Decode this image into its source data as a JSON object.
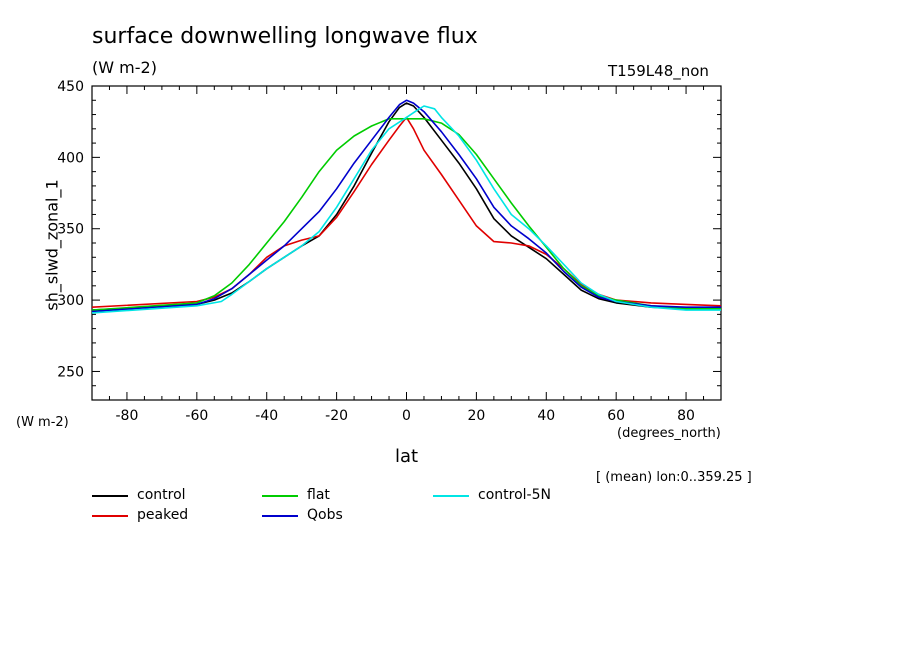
{
  "header": {
    "title": "surface downwelling longwave flux",
    "subtitle": "(W m-2)",
    "run_id": "T159L48_non"
  },
  "footer": {
    "mean_note": "[ (mean) lon:0..359.25 ]"
  },
  "chart_data": {
    "type": "line",
    "title": "surface downwelling longwave flux",
    "xlabel": "lat",
    "xlabel_unit": "(degrees_north)",
    "ylabel": "sh_slwd_zonal_1",
    "ylabel_unit": "(W m-2)",
    "xlim": [
      -90,
      90
    ],
    "ylim": [
      230,
      450
    ],
    "xticks": [
      -80,
      -60,
      -40,
      -20,
      0,
      20,
      40,
      60,
      80
    ],
    "xtick_labels": [
      "-80",
      "-60",
      "-40",
      "-20",
      "0",
      "20",
      "40",
      "60",
      "80"
    ],
    "yticks": [
      250,
      300,
      350,
      400,
      450
    ],
    "ytick_labels": [
      "250",
      "300",
      "350",
      "400",
      "450"
    ],
    "grid": false,
    "legend_position": "below",
    "series": [
      {
        "name": "control",
        "color": "#000000",
        "x": [
          -90,
          -60,
          -55,
          -50,
          -45,
          -40,
          -35,
          -30,
          -25,
          -20,
          -15,
          -10,
          -5,
          -2,
          0,
          2,
          5,
          10,
          15,
          20,
          25,
          30,
          35,
          40,
          45,
          50,
          55,
          60,
          70,
          80,
          90
        ],
        "y": [
          293,
          297,
          300,
          305,
          313,
          322,
          330,
          338,
          345,
          360,
          380,
          403,
          425,
          435,
          438,
          436,
          428,
          412,
          396,
          378,
          357,
          345,
          337,
          329,
          318,
          307,
          301,
          298,
          295,
          294,
          294
        ]
      },
      {
        "name": "peaked",
        "color": "#e00000",
        "x": [
          -90,
          -60,
          -55,
          -50,
          -45,
          -40,
          -35,
          -30,
          -25,
          -20,
          -15,
          -10,
          -5,
          -2,
          0,
          2,
          5,
          10,
          15,
          20,
          25,
          30,
          35,
          40,
          45,
          50,
          55,
          60,
          70,
          80,
          90
        ],
        "y": [
          295,
          299,
          302,
          308,
          318,
          330,
          338,
          342,
          345,
          358,
          376,
          395,
          412,
          422,
          428,
          420,
          405,
          388,
          370,
          352,
          341,
          340,
          338,
          332,
          322,
          311,
          304,
          300,
          298,
          297,
          296
        ]
      },
      {
        "name": "flat",
        "color": "#00cc00",
        "x": [
          -90,
          -60,
          -55,
          -50,
          -45,
          -40,
          -35,
          -30,
          -25,
          -20,
          -15,
          -10,
          -5,
          0,
          5,
          10,
          15,
          20,
          25,
          30,
          35,
          40,
          45,
          50,
          55,
          60,
          70,
          80,
          90
        ],
        "y": [
          293,
          298,
          303,
          312,
          325,
          340,
          355,
          372,
          390,
          405,
          415,
          422,
          427,
          427,
          427,
          424,
          416,
          402,
          385,
          368,
          352,
          337,
          322,
          310,
          303,
          300,
          296,
          294,
          294
        ]
      },
      {
        "name": "Qobs",
        "color": "#0000cc",
        "x": [
          -90,
          -60,
          -55,
          -50,
          -45,
          -40,
          -35,
          -30,
          -25,
          -20,
          -15,
          -10,
          -5,
          -2,
          0,
          2,
          5,
          10,
          15,
          20,
          25,
          30,
          35,
          40,
          45,
          50,
          55,
          60,
          70,
          80,
          90
        ],
        "y": [
          292,
          297,
          301,
          308,
          318,
          328,
          338,
          350,
          362,
          378,
          396,
          412,
          428,
          437,
          440,
          438,
          432,
          418,
          402,
          385,
          365,
          352,
          343,
          333,
          320,
          309,
          302,
          299,
          296,
          295,
          295
        ]
      },
      {
        "name": "control-5N",
        "color": "#00e5e5",
        "x": [
          -90,
          -60,
          -53,
          -50,
          -45,
          -40,
          -35,
          -30,
          -25,
          -20,
          -15,
          -10,
          -5,
          0,
          3,
          5,
          8,
          10,
          15,
          20,
          25,
          30,
          35,
          40,
          45,
          50,
          55,
          60,
          70,
          80,
          90
        ],
        "y": [
          291,
          296,
          299,
          304,
          313,
          322,
          330,
          338,
          348,
          365,
          385,
          405,
          420,
          428,
          433,
          436,
          434,
          428,
          415,
          398,
          378,
          360,
          350,
          338,
          325,
          312,
          304,
          299,
          295,
          293,
          293
        ]
      }
    ]
  }
}
